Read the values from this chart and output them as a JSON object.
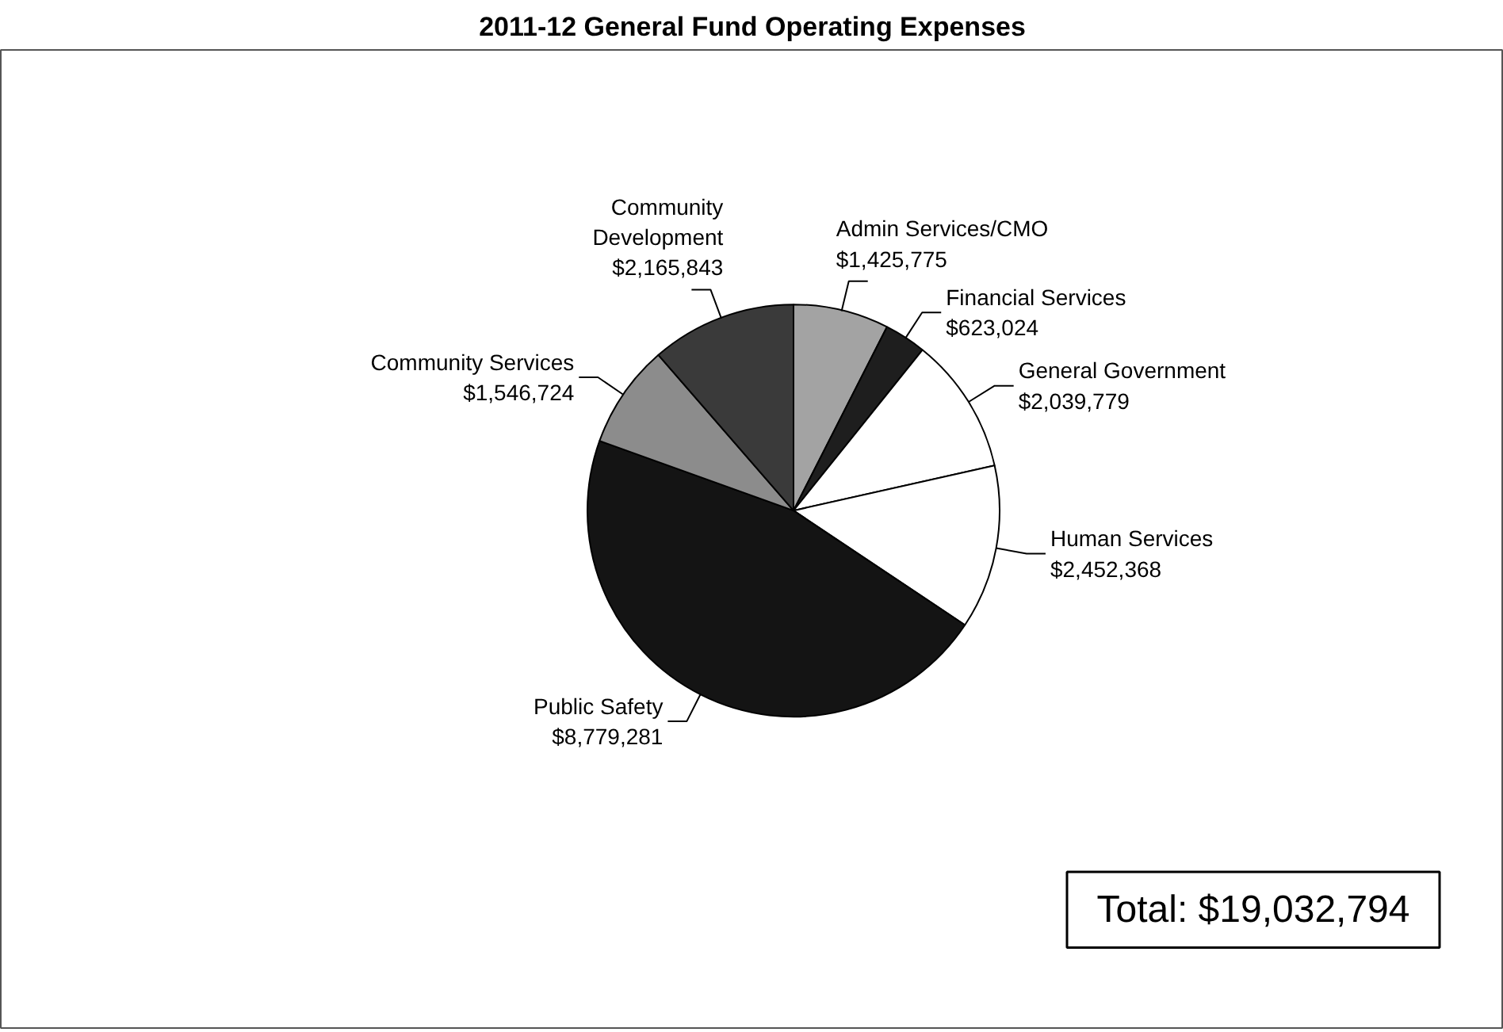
{
  "chart_data": {
    "type": "pie",
    "title": "2011-12 General Fund Operating Expenses",
    "categories": [
      "Admin Services/CMO",
      "Financial Services",
      "General Government",
      "Human Services",
      "Public Safety",
      "Community Services",
      "Community Development"
    ],
    "values": [
      1425775,
      623024,
      2039779,
      2452368,
      8779281,
      1546724,
      2165843
    ],
    "colors": [
      "#a3a3a3",
      "#1e1e1e",
      "#ffffff",
      "#ffffff",
      "#141414",
      "#8c8c8c",
      "#3a3a3a"
    ],
    "value_labels": [
      "$1,425,775",
      "$623,024",
      "$2,039,779",
      "$2,452,368",
      "$8,779,281",
      "$1,546,724",
      "$2,165,843"
    ],
    "annotations": [
      "Total: $19,032,794"
    ]
  }
}
